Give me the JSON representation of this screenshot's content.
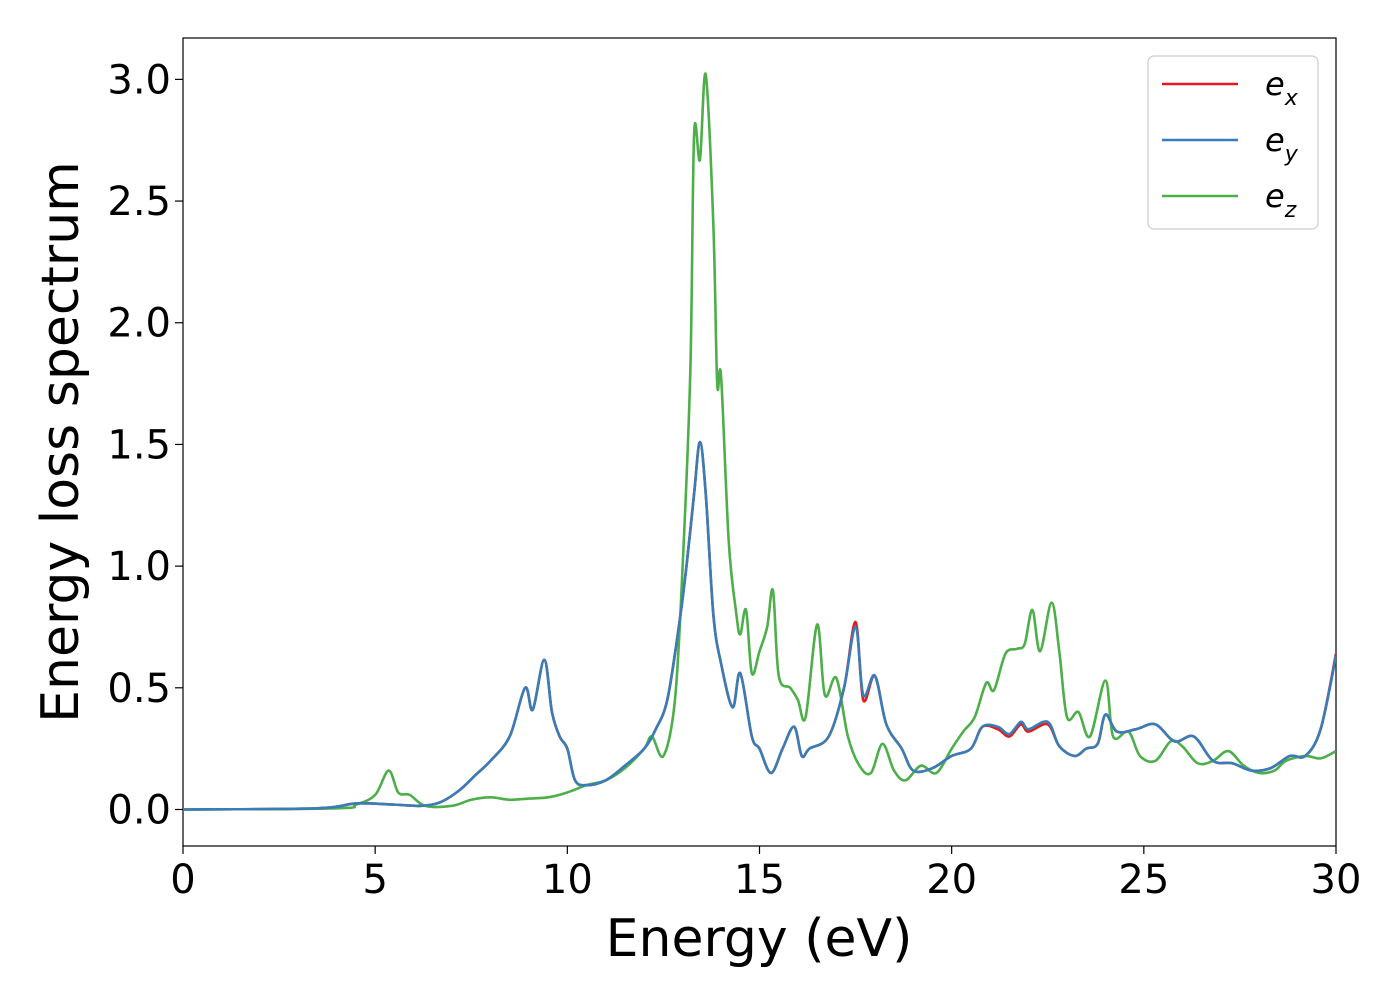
{
  "chart_data": {
    "type": "line",
    "title": "",
    "xlabel": "Energy (eV)",
    "ylabel": "Energy loss spectrum",
    "xlim": [
      0,
      30
    ],
    "ylim": [
      -0.15,
      3.17
    ],
    "xticks": [
      0,
      5,
      10,
      15,
      20,
      25,
      30
    ],
    "xtick_labels": [
      "0",
      "5",
      "10",
      "15",
      "20",
      "25",
      "30"
    ],
    "yticks": [
      0.0,
      0.5,
      1.0,
      1.5,
      2.0,
      2.5,
      3.0
    ],
    "ytick_labels": [
      "0.0",
      "0.5",
      "1.0",
      "1.5",
      "2.0",
      "2.5",
      "3.0"
    ],
    "grid": false,
    "legend_position": "top-right",
    "series": [
      {
        "name": "e_x",
        "legend": {
          "base": "e",
          "sub": "x"
        },
        "color": "#e41a1c",
        "points": [
          [
            0,
            0
          ],
          [
            3.5,
            0.005
          ],
          [
            4.5,
            0.025
          ],
          [
            5.5,
            0.02
          ],
          [
            6.2,
            0.015
          ],
          [
            6.7,
            0.03
          ],
          [
            7.2,
            0.08
          ],
          [
            7.6,
            0.14
          ],
          [
            8.0,
            0.2
          ],
          [
            8.5,
            0.3
          ],
          [
            8.9,
            0.5
          ],
          [
            9.1,
            0.41
          ],
          [
            9.4,
            0.615
          ],
          [
            9.6,
            0.4
          ],
          [
            9.8,
            0.3
          ],
          [
            10.0,
            0.25
          ],
          [
            10.2,
            0.12
          ],
          [
            10.5,
            0.1
          ],
          [
            11.0,
            0.12
          ],
          [
            11.5,
            0.18
          ],
          [
            12.0,
            0.25
          ],
          [
            12.3,
            0.33
          ],
          [
            12.6,
            0.45
          ],
          [
            12.9,
            0.75
          ],
          [
            13.1,
            1.0
          ],
          [
            13.3,
            1.3
          ],
          [
            13.45,
            1.51
          ],
          [
            13.6,
            1.3
          ],
          [
            13.8,
            0.8
          ],
          [
            14.0,
            0.6
          ],
          [
            14.3,
            0.42
          ],
          [
            14.5,
            0.56
          ],
          [
            14.8,
            0.3
          ],
          [
            15.0,
            0.25
          ],
          [
            15.3,
            0.15
          ],
          [
            15.6,
            0.25
          ],
          [
            15.9,
            0.34
          ],
          [
            16.1,
            0.22
          ],
          [
            16.3,
            0.25
          ],
          [
            16.8,
            0.3
          ],
          [
            17.2,
            0.5
          ],
          [
            17.5,
            0.77
          ],
          [
            17.7,
            0.45
          ],
          [
            18.0,
            0.55
          ],
          [
            18.3,
            0.35
          ],
          [
            18.7,
            0.25
          ],
          [
            19.0,
            0.16
          ],
          [
            19.5,
            0.17
          ],
          [
            20.0,
            0.22
          ],
          [
            20.5,
            0.25
          ],
          [
            20.8,
            0.34
          ],
          [
            21.2,
            0.33
          ],
          [
            21.5,
            0.3
          ],
          [
            21.8,
            0.35
          ],
          [
            22.0,
            0.32
          ],
          [
            22.5,
            0.35
          ],
          [
            22.8,
            0.26
          ],
          [
            23.2,
            0.22
          ],
          [
            23.5,
            0.25
          ],
          [
            23.8,
            0.27
          ],
          [
            24.0,
            0.39
          ],
          [
            24.3,
            0.32
          ],
          [
            24.8,
            0.33
          ],
          [
            25.3,
            0.35
          ],
          [
            25.8,
            0.28
          ],
          [
            26.3,
            0.3
          ],
          [
            26.8,
            0.2
          ],
          [
            27.3,
            0.19
          ],
          [
            27.8,
            0.16
          ],
          [
            28.3,
            0.17
          ],
          [
            28.8,
            0.22
          ],
          [
            29.2,
            0.22
          ],
          [
            29.6,
            0.33
          ],
          [
            30.0,
            0.64
          ]
        ]
      },
      {
        "name": "e_y",
        "legend": {
          "base": "e",
          "sub": "y"
        },
        "color": "#377eb8",
        "points": [
          [
            0,
            0
          ],
          [
            3.5,
            0.005
          ],
          [
            4.5,
            0.025
          ],
          [
            5.5,
            0.02
          ],
          [
            6.2,
            0.015
          ],
          [
            6.7,
            0.03
          ],
          [
            7.2,
            0.08
          ],
          [
            7.6,
            0.14
          ],
          [
            8.0,
            0.2
          ],
          [
            8.5,
            0.3
          ],
          [
            8.9,
            0.5
          ],
          [
            9.1,
            0.41
          ],
          [
            9.4,
            0.615
          ],
          [
            9.6,
            0.4
          ],
          [
            9.8,
            0.3
          ],
          [
            10.0,
            0.25
          ],
          [
            10.2,
            0.12
          ],
          [
            10.5,
            0.1
          ],
          [
            11.0,
            0.12
          ],
          [
            11.5,
            0.18
          ],
          [
            12.0,
            0.25
          ],
          [
            12.3,
            0.33
          ],
          [
            12.6,
            0.45
          ],
          [
            12.9,
            0.75
          ],
          [
            13.1,
            1.0
          ],
          [
            13.3,
            1.3
          ],
          [
            13.45,
            1.51
          ],
          [
            13.6,
            1.3
          ],
          [
            13.8,
            0.8
          ],
          [
            14.0,
            0.6
          ],
          [
            14.3,
            0.42
          ],
          [
            14.5,
            0.56
          ],
          [
            14.8,
            0.3
          ],
          [
            15.0,
            0.25
          ],
          [
            15.3,
            0.15
          ],
          [
            15.6,
            0.25
          ],
          [
            15.9,
            0.34
          ],
          [
            16.1,
            0.22
          ],
          [
            16.3,
            0.25
          ],
          [
            16.8,
            0.3
          ],
          [
            17.2,
            0.5
          ],
          [
            17.5,
            0.75
          ],
          [
            17.7,
            0.47
          ],
          [
            18.0,
            0.55
          ],
          [
            18.3,
            0.35
          ],
          [
            18.7,
            0.25
          ],
          [
            19.0,
            0.16
          ],
          [
            19.5,
            0.17
          ],
          [
            20.0,
            0.22
          ],
          [
            20.5,
            0.25
          ],
          [
            20.8,
            0.34
          ],
          [
            21.2,
            0.34
          ],
          [
            21.5,
            0.31
          ],
          [
            21.8,
            0.36
          ],
          [
            22.0,
            0.33
          ],
          [
            22.5,
            0.36
          ],
          [
            22.8,
            0.26
          ],
          [
            23.2,
            0.22
          ],
          [
            23.5,
            0.25
          ],
          [
            23.8,
            0.27
          ],
          [
            24.0,
            0.39
          ],
          [
            24.3,
            0.32
          ],
          [
            24.8,
            0.33
          ],
          [
            25.3,
            0.35
          ],
          [
            25.8,
            0.28
          ],
          [
            26.3,
            0.3
          ],
          [
            26.8,
            0.2
          ],
          [
            27.3,
            0.19
          ],
          [
            27.8,
            0.16
          ],
          [
            28.3,
            0.17
          ],
          [
            28.8,
            0.22
          ],
          [
            29.2,
            0.22
          ],
          [
            29.6,
            0.33
          ],
          [
            30.0,
            0.63
          ]
        ]
      },
      {
        "name": "e_z",
        "legend": {
          "base": "e",
          "sub": "z"
        },
        "color": "#4daf4a",
        "points": [
          [
            0,
            0
          ],
          [
            4.0,
            0.005
          ],
          [
            4.5,
            0.02
          ],
          [
            5.0,
            0.06
          ],
          [
            5.35,
            0.16
          ],
          [
            5.6,
            0.07
          ],
          [
            5.9,
            0.06
          ],
          [
            6.3,
            0.015
          ],
          [
            7.0,
            0.015
          ],
          [
            7.5,
            0.04
          ],
          [
            8.0,
            0.05
          ],
          [
            8.5,
            0.04
          ],
          [
            9.0,
            0.045
          ],
          [
            9.5,
            0.05
          ],
          [
            10.0,
            0.07
          ],
          [
            10.5,
            0.1
          ],
          [
            11.0,
            0.12
          ],
          [
            11.5,
            0.17
          ],
          [
            12.0,
            0.25
          ],
          [
            12.2,
            0.3
          ],
          [
            12.5,
            0.22
          ],
          [
            12.8,
            0.45
          ],
          [
            13.0,
            1.0
          ],
          [
            13.2,
            1.8
          ],
          [
            13.3,
            2.78
          ],
          [
            13.45,
            2.67
          ],
          [
            13.6,
            3.02
          ],
          [
            13.8,
            2.4
          ],
          [
            13.9,
            1.75
          ],
          [
            14.0,
            1.78
          ],
          [
            14.2,
            1.1
          ],
          [
            14.4,
            0.8
          ],
          [
            14.5,
            0.72
          ],
          [
            14.65,
            0.82
          ],
          [
            14.8,
            0.56
          ],
          [
            15.0,
            0.65
          ],
          [
            15.2,
            0.75
          ],
          [
            15.35,
            0.9
          ],
          [
            15.5,
            0.55
          ],
          [
            15.8,
            0.5
          ],
          [
            16.0,
            0.45
          ],
          [
            16.2,
            0.38
          ],
          [
            16.5,
            0.76
          ],
          [
            16.7,
            0.47
          ],
          [
            17.0,
            0.54
          ],
          [
            17.3,
            0.3
          ],
          [
            17.6,
            0.18
          ],
          [
            17.9,
            0.15
          ],
          [
            18.2,
            0.27
          ],
          [
            18.5,
            0.16
          ],
          [
            18.8,
            0.12
          ],
          [
            19.2,
            0.18
          ],
          [
            19.6,
            0.15
          ],
          [
            20.0,
            0.25
          ],
          [
            20.3,
            0.32
          ],
          [
            20.6,
            0.38
          ],
          [
            20.9,
            0.52
          ],
          [
            21.1,
            0.49
          ],
          [
            21.4,
            0.64
          ],
          [
            21.7,
            0.66
          ],
          [
            21.9,
            0.68
          ],
          [
            22.1,
            0.82
          ],
          [
            22.3,
            0.65
          ],
          [
            22.6,
            0.85
          ],
          [
            22.8,
            0.65
          ],
          [
            23.0,
            0.38
          ],
          [
            23.3,
            0.4
          ],
          [
            23.6,
            0.3
          ],
          [
            24.0,
            0.53
          ],
          [
            24.2,
            0.3
          ],
          [
            24.6,
            0.32
          ],
          [
            24.9,
            0.22
          ],
          [
            25.3,
            0.2
          ],
          [
            25.7,
            0.28
          ],
          [
            26.0,
            0.26
          ],
          [
            26.4,
            0.19
          ],
          [
            26.8,
            0.2
          ],
          [
            27.2,
            0.24
          ],
          [
            27.6,
            0.18
          ],
          [
            28.0,
            0.15
          ],
          [
            28.4,
            0.16
          ],
          [
            28.7,
            0.2
          ],
          [
            29.2,
            0.22
          ],
          [
            29.6,
            0.21
          ],
          [
            30.0,
            0.24
          ]
        ]
      }
    ]
  }
}
